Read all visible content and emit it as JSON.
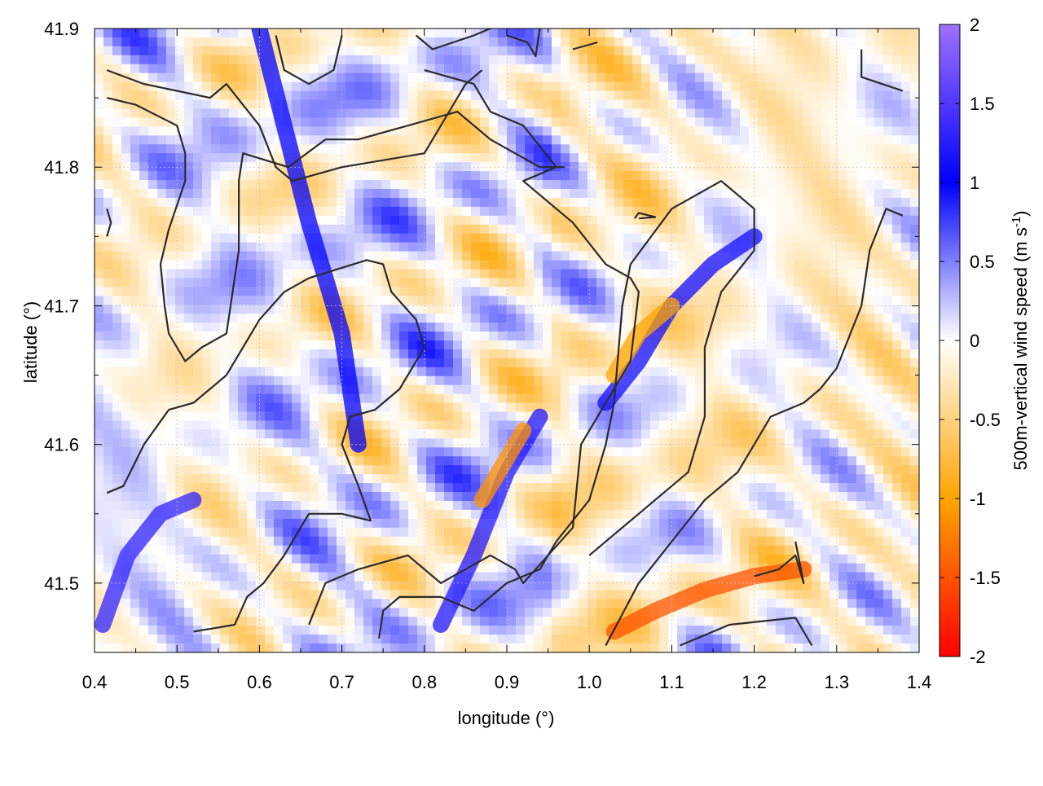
{
  "chart_data": {
    "type": "heatmap",
    "title": "",
    "xlabel": "longitude (°)",
    "ylabel": "latitude (°)",
    "xlim": [
      0.4,
      1.4
    ],
    "ylim": [
      41.45,
      41.9
    ],
    "x_ticks": [
      0.4,
      0.5,
      0.6,
      0.7,
      0.8,
      0.9,
      1.0,
      1.1,
      1.2,
      1.3,
      1.4
    ],
    "x_tick_labels": [
      "0.4",
      "0.5",
      "0.6",
      "0.7",
      "0.8",
      "0.9",
      "1.0",
      "1.1",
      "1.2",
      "1.3",
      "1.4"
    ],
    "y_ticks": [
      41.5,
      41.6,
      41.7,
      41.8,
      41.9
    ],
    "y_tick_labels": [
      "41.5",
      "41.6",
      "41.7",
      "41.8",
      "41.9"
    ],
    "grid": true,
    "colorbar": {
      "label_main": "500m-vertical wind speed (m s",
      "label_sup": "-1",
      "label_end": ")",
      "range": [
        -2,
        2
      ],
      "ticks": [
        2,
        1.5,
        1,
        0.5,
        0,
        -0.5,
        -1,
        -1.5,
        -2
      ],
      "tick_labels": [
        "2",
        "1.5",
        "1",
        "0.5",
        "0",
        "-0.5",
        "-1",
        "-1.5",
        "-2"
      ],
      "color_stops": [
        {
          "value": -2,
          "color": "#ff0000"
        },
        {
          "value": -1,
          "color": "#ffa500"
        },
        {
          "value": 0,
          "color": "#ffffff"
        },
        {
          "value": 1,
          "color": "#0000ff"
        },
        {
          "value": 2,
          "color": "#a070ff"
        }
      ]
    },
    "features": [
      {
        "name": "band-blue-diagonal",
        "sign": "positive",
        "value": 1.0,
        "path": [
          [
            0.6,
            41.9
          ],
          [
            0.63,
            41.83
          ],
          [
            0.66,
            41.76
          ],
          [
            0.7,
            41.68
          ],
          [
            0.72,
            41.6
          ]
        ]
      },
      {
        "name": "band-blue-ridge",
        "sign": "positive",
        "value": 1.2,
        "path": [
          [
            0.82,
            41.47
          ],
          [
            0.86,
            41.52
          ],
          [
            0.9,
            41.58
          ],
          [
            0.94,
            41.62
          ]
        ]
      },
      {
        "name": "band-blue-ridge-north",
        "sign": "positive",
        "value": 1.1,
        "path": [
          [
            1.02,
            41.63
          ],
          [
            1.06,
            41.66
          ],
          [
            1.1,
            41.7
          ],
          [
            1.15,
            41.73
          ],
          [
            1.2,
            41.75
          ]
        ]
      },
      {
        "name": "band-blue-southwest",
        "sign": "positive",
        "value": 1.3,
        "path": [
          [
            0.41,
            41.47
          ],
          [
            0.44,
            41.52
          ],
          [
            0.48,
            41.55
          ],
          [
            0.52,
            41.56
          ]
        ]
      },
      {
        "name": "band-orange-southeast",
        "sign": "negative",
        "value": -1.5,
        "path": [
          [
            1.03,
            41.465
          ],
          [
            1.08,
            41.48
          ],
          [
            1.14,
            41.495
          ],
          [
            1.2,
            41.505
          ],
          [
            1.26,
            41.51
          ]
        ]
      },
      {
        "name": "band-orange-ridge",
        "sign": "negative",
        "value": -1.1,
        "path": [
          [
            0.87,
            41.56
          ],
          [
            0.9,
            41.59
          ],
          [
            0.92,
            41.61
          ]
        ]
      },
      {
        "name": "band-orange-ridge-north",
        "sign": "negative",
        "value": -1.0,
        "path": [
          [
            1.03,
            41.65
          ],
          [
            1.06,
            41.68
          ],
          [
            1.1,
            41.7
          ]
        ]
      }
    ],
    "contours": [
      [
        [
          0.415,
          41.87
        ],
        [
          0.46,
          41.86
        ],
        [
          0.54,
          41.85
        ],
        [
          0.56,
          41.86
        ],
        [
          0.6,
          41.83
        ],
        [
          0.62,
          41.8
        ],
        [
          0.64,
          41.79
        ],
        [
          0.7,
          41.8
        ],
        [
          0.8,
          41.81
        ],
        [
          0.85,
          41.86
        ],
        [
          0.87,
          41.87
        ]
      ],
      [
        [
          0.415,
          41.85
        ],
        [
          0.45,
          41.845
        ],
        [
          0.5,
          41.83
        ],
        [
          0.51,
          41.81
        ],
        [
          0.51,
          41.79
        ],
        [
          0.49,
          41.755
        ],
        [
          0.48,
          41.73
        ],
        [
          0.485,
          41.7
        ],
        [
          0.49,
          41.68
        ],
        [
          0.51,
          41.66
        ],
        [
          0.53,
          41.67
        ],
        [
          0.56,
          41.68
        ],
        [
          0.575,
          41.74
        ],
        [
          0.575,
          41.79
        ],
        [
          0.58,
          41.81
        ],
        [
          0.635,
          41.8
        ],
        [
          0.68,
          41.82
        ],
        [
          0.72,
          41.82
        ],
        [
          0.78,
          41.83
        ],
        [
          0.84,
          41.84
        ],
        [
          0.88,
          41.82
        ],
        [
          0.94,
          41.8
        ],
        [
          0.97,
          41.8
        ]
      ],
      [
        [
          0.415,
          41.565
        ],
        [
          0.435,
          41.57
        ],
        [
          0.46,
          41.6
        ],
        [
          0.49,
          41.625
        ],
        [
          0.52,
          41.63
        ],
        [
          0.56,
          41.65
        ],
        [
          0.58,
          41.67
        ],
        [
          0.6,
          41.69
        ],
        [
          0.63,
          41.71
        ],
        [
          0.66,
          41.72
        ],
        [
          0.73,
          41.733
        ],
        [
          0.75,
          41.73
        ],
        [
          0.76,
          41.71
        ],
        [
          0.79,
          41.69
        ],
        [
          0.8,
          41.67
        ],
        [
          0.77,
          41.64
        ],
        [
          0.74,
          41.625
        ],
        [
          0.71,
          41.62
        ],
        [
          0.7,
          41.6
        ],
        [
          0.72,
          41.57
        ],
        [
          0.735,
          41.545
        ],
        [
          0.7,
          41.55
        ],
        [
          0.66,
          41.55
        ],
        [
          0.63,
          41.52
        ],
        [
          0.605,
          41.5
        ],
        [
          0.585,
          41.49
        ],
        [
          0.57,
          41.47
        ],
        [
          0.52,
          41.465
        ]
      ],
      [
        [
          0.66,
          41.47
        ],
        [
          0.68,
          41.5
        ],
        [
          0.72,
          41.51
        ],
        [
          0.78,
          41.52
        ],
        [
          0.82,
          41.5
        ],
        [
          0.88,
          41.52
        ],
        [
          0.91,
          41.51
        ],
        [
          0.92,
          41.5
        ],
        [
          0.95,
          41.52
        ],
        [
          0.98,
          41.54
        ],
        [
          0.99,
          41.6
        ],
        [
          1.01,
          41.62
        ],
        [
          1.05,
          41.66
        ],
        [
          1.06,
          41.71
        ],
        [
          1.05,
          41.72
        ],
        [
          1.02,
          41.73
        ],
        [
          0.98,
          41.76
        ],
        [
          0.95,
          41.775
        ],
        [
          0.92,
          41.79
        ],
        [
          0.96,
          41.8
        ],
        [
          0.92,
          41.83
        ],
        [
          0.88,
          41.84
        ],
        [
          0.86,
          41.86
        ],
        [
          0.8,
          41.87
        ]
      ],
      [
        [
          1.02,
          41.455
        ],
        [
          1.06,
          41.5
        ],
        [
          1.1,
          41.53
        ],
        [
          1.14,
          41.56
        ],
        [
          1.18,
          41.58
        ],
        [
          1.2,
          41.6
        ],
        [
          1.22,
          41.62
        ],
        [
          1.26,
          41.63
        ],
        [
          1.28,
          41.64
        ],
        [
          1.3,
          41.655
        ],
        [
          1.33,
          41.7
        ],
        [
          1.34,
          41.74
        ],
        [
          1.36,
          41.77
        ],
        [
          1.38,
          41.765
        ]
      ],
      [
        [
          1.11,
          41.455
        ],
        [
          1.17,
          41.47
        ],
        [
          1.25,
          41.475
        ],
        [
          1.27,
          41.455
        ]
      ],
      [
        [
          1.2,
          41.505
        ],
        [
          1.23,
          41.51
        ],
        [
          1.25,
          41.52
        ],
        [
          1.26,
          41.5
        ],
        [
          1.25,
          41.53
        ]
      ],
      [
        [
          0.745,
          41.46
        ],
        [
          0.75,
          41.48
        ],
        [
          0.77,
          41.49
        ],
        [
          0.82,
          41.49
        ],
        [
          0.86,
          41.48
        ],
        [
          0.9,
          41.5
        ],
        [
          0.94,
          41.51
        ],
        [
          0.96,
          41.53
        ],
        [
          1.0,
          41.56
        ],
        [
          1.02,
          41.6
        ],
        [
          1.03,
          41.63
        ],
        [
          1.04,
          41.7
        ],
        [
          1.05,
          41.73
        ],
        [
          1.1,
          41.77
        ],
        [
          1.16,
          41.79
        ],
        [
          1.2,
          41.77
        ],
        [
          1.2,
          41.74
        ],
        [
          1.16,
          41.71
        ],
        [
          1.14,
          41.67
        ],
        [
          1.14,
          41.62
        ],
        [
          1.12,
          41.58
        ],
        [
          1.1,
          41.57
        ],
        [
          1.06,
          41.55
        ],
        [
          1.0,
          41.52
        ]
      ],
      [
        [
          0.62,
          41.895
        ],
        [
          0.63,
          41.87
        ],
        [
          0.66,
          41.86
        ],
        [
          0.69,
          41.87
        ],
        [
          0.7,
          41.895
        ]
      ],
      [
        [
          0.79,
          41.895
        ],
        [
          0.81,
          41.885
        ],
        [
          0.86,
          41.895
        ],
        [
          0.88,
          41.9
        ]
      ],
      [
        [
          0.9,
          41.895
        ],
        [
          0.925,
          41.89
        ],
        [
          0.935,
          41.88
        ],
        [
          0.94,
          41.9
        ]
      ],
      [
        [
          0.98,
          41.885
        ],
        [
          1.01,
          41.89
        ]
      ],
      [
        [
          0.415,
          41.77
        ],
        [
          0.42,
          41.76
        ],
        [
          0.415,
          41.75
        ]
      ],
      [
        [
          1.06,
          41.763
        ],
        [
          1.08,
          41.764
        ],
        [
          1.06,
          41.767
        ],
        [
          1.055,
          41.763
        ]
      ],
      [
        [
          1.33,
          41.885
        ],
        [
          1.33,
          41.865
        ],
        [
          1.38,
          41.855
        ]
      ]
    ]
  }
}
